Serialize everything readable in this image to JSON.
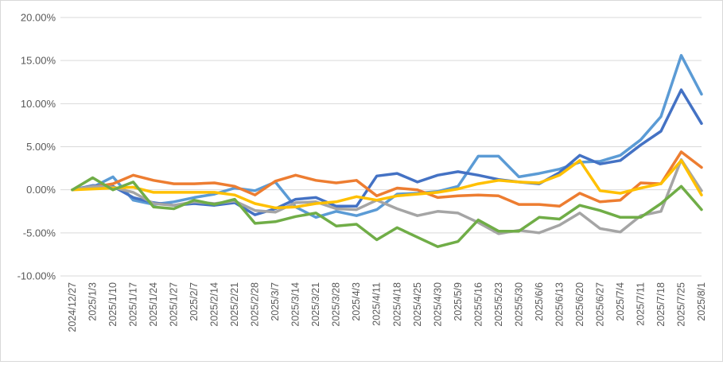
{
  "chart_data": {
    "type": "line",
    "title": "",
    "xlabel": "",
    "ylabel": "",
    "ylim": [
      -0.1,
      0.2
    ],
    "y_ticks": [
      -0.1,
      -0.05,
      0.0,
      0.05,
      0.1,
      0.15,
      0.2
    ],
    "y_tick_labels": [
      "-10.00%",
      "-5.00%",
      "0.00%",
      "5.00%",
      "10.00%",
      "15.00%",
      "20.00%"
    ],
    "grid": "horizontal",
    "legend": "none",
    "categories": [
      "2024/12/27",
      "2025/1/3",
      "2025/1/10",
      "2025/1/17",
      "2025/1/24",
      "2025/1/27",
      "2025/2/7",
      "2025/2/14",
      "2025/2/21",
      "2025/2/28",
      "2025/3/7",
      "2025/3/14",
      "2025/3/21",
      "2025/3/28",
      "2025/4/3",
      "2025/4/11",
      "2025/4/18",
      "2025/4/25",
      "2025/4/30",
      "2025/5/9",
      "2025/5/16",
      "2025/5/23",
      "2025/5/30",
      "2025/6/6",
      "2025/6/13",
      "2025/6/20",
      "2025/6/27",
      "2025/7/4",
      "2025/7/11",
      "2025/7/18",
      "2025/7/25",
      "2025/8/1"
    ],
    "series": [
      {
        "color": "#5b9bd5",
        "values": [
          0.0,
          0.003,
          0.015,
          -0.012,
          -0.017,
          -0.014,
          -0.009,
          -0.005,
          0.002,
          -0.001,
          0.009,
          -0.02,
          -0.032,
          -0.025,
          -0.03,
          -0.023,
          -0.005,
          -0.004,
          -0.002,
          0.004,
          0.039,
          0.039,
          0.015,
          0.019,
          0.024,
          0.032,
          0.033,
          0.04,
          0.058,
          0.085,
          0.156,
          0.111
        ]
      },
      {
        "color": "#4472c4",
        "values": [
          0.0,
          0.005,
          0.004,
          -0.009,
          -0.015,
          -0.018,
          -0.016,
          -0.018,
          -0.015,
          -0.029,
          -0.022,
          -0.011,
          -0.009,
          -0.019,
          -0.019,
          0.016,
          0.019,
          0.009,
          0.017,
          0.021,
          0.017,
          0.012,
          0.009,
          0.007,
          0.02,
          0.04,
          0.03,
          0.034,
          0.052,
          0.068,
          0.116,
          0.077
        ]
      },
      {
        "color": "#ed7d31",
        "values": [
          0.0,
          0.003,
          0.007,
          0.017,
          0.011,
          0.007,
          0.007,
          0.008,
          0.004,
          -0.006,
          0.01,
          0.017,
          0.011,
          0.008,
          0.011,
          -0.007,
          0.002,
          0.0,
          -0.009,
          -0.007,
          -0.006,
          -0.007,
          -0.017,
          -0.017,
          -0.019,
          -0.004,
          -0.014,
          -0.012,
          0.008,
          0.007,
          0.044,
          0.026
        ]
      },
      {
        "color": "#a5a5a5",
        "values": [
          0.0,
          0.004,
          0.003,
          -0.003,
          -0.016,
          -0.018,
          -0.014,
          -0.016,
          -0.013,
          -0.024,
          -0.026,
          -0.015,
          -0.014,
          -0.022,
          -0.023,
          -0.012,
          -0.022,
          -0.03,
          -0.025,
          -0.027,
          -0.038,
          -0.051,
          -0.047,
          -0.05,
          -0.041,
          -0.027,
          -0.045,
          -0.049,
          -0.03,
          -0.025,
          0.035,
          -0.001
        ]
      },
      {
        "color": "#ffc000",
        "values": [
          0.0,
          0.001,
          0.002,
          0.003,
          -0.003,
          -0.003,
          -0.003,
          -0.003,
          -0.006,
          -0.016,
          -0.021,
          -0.02,
          -0.016,
          -0.014,
          -0.008,
          -0.012,
          -0.007,
          -0.005,
          -0.003,
          0.001,
          0.007,
          0.011,
          0.009,
          0.008,
          0.017,
          0.034,
          -0.001,
          -0.004,
          0.002,
          0.007,
          0.034,
          -0.006
        ]
      },
      {
        "color": "#70ad47",
        "values": [
          0.0,
          0.014,
          0.0,
          0.009,
          -0.02,
          -0.022,
          -0.012,
          -0.017,
          -0.011,
          -0.039,
          -0.037,
          -0.031,
          -0.027,
          -0.042,
          -0.04,
          -0.058,
          -0.044,
          -0.055,
          -0.066,
          -0.06,
          -0.035,
          -0.048,
          -0.048,
          -0.032,
          -0.034,
          -0.018,
          -0.024,
          -0.032,
          -0.032,
          -0.016,
          0.004,
          -0.023
        ]
      }
    ]
  }
}
